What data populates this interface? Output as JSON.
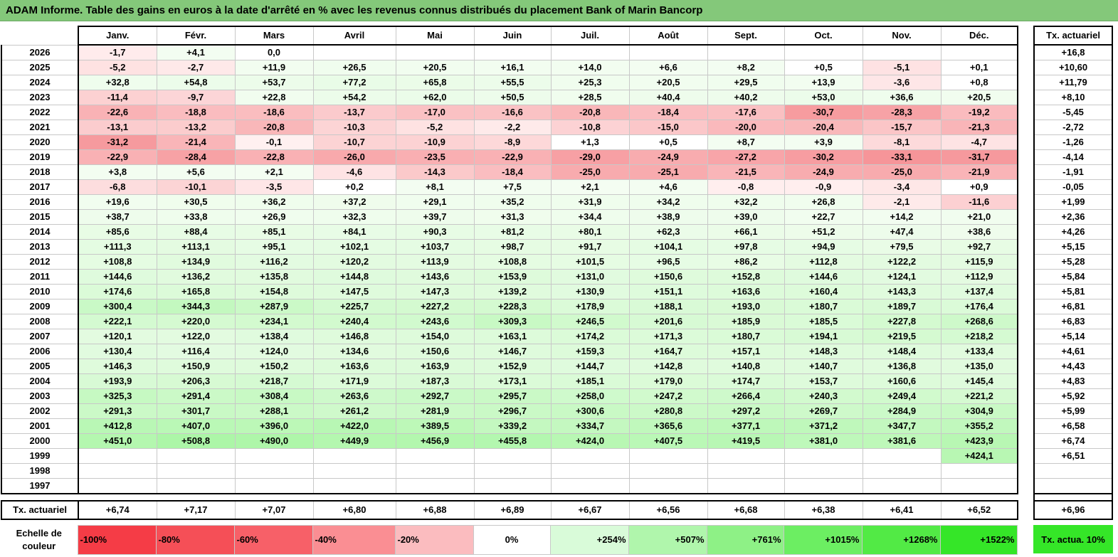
{
  "title": "ADAM Informe. Table des gains en euros à la date d'arrêté en % avec les revenus connus distribués du placement Bank of Marin Bancorp",
  "months": [
    "Janv.",
    "Févr.",
    "Mars",
    "Avril",
    "Mai",
    "Juin",
    "Juil.",
    "Août",
    "Sept.",
    "Oct.",
    "Nov.",
    "Déc."
  ],
  "side_header": "Tx. actuariel",
  "rows": [
    {
      "year": "2026",
      "cells": [
        "-1,7",
        "+4,1",
        "0,0",
        "",
        "",
        "",
        "",
        "",
        "",
        "",
        "",
        ""
      ],
      "tx": "+16,8"
    },
    {
      "year": "2025",
      "cells": [
        "-5,2",
        "-2,7",
        "+11,9",
        "+26,5",
        "+20,5",
        "+16,1",
        "+14,0",
        "+6,6",
        "+8,2",
        "+0,5",
        "-5,1",
        "+0,1"
      ],
      "tx": "+10,60"
    },
    {
      "year": "2024",
      "cells": [
        "+32,8",
        "+54,8",
        "+53,7",
        "+77,2",
        "+65,8",
        "+55,5",
        "+25,3",
        "+20,5",
        "+29,5",
        "+13,9",
        "-3,6",
        "+0,8"
      ],
      "tx": "+11,79"
    },
    {
      "year": "2023",
      "cells": [
        "-11,4",
        "-9,7",
        "+22,8",
        "+54,2",
        "+62,0",
        "+50,5",
        "+28,5",
        "+40,4",
        "+40,2",
        "+53,0",
        "+36,6",
        "+20,5"
      ],
      "tx": "+8,10"
    },
    {
      "year": "2022",
      "cells": [
        "-22,6",
        "-18,8",
        "-18,6",
        "-13,7",
        "-17,0",
        "-16,6",
        "-20,8",
        "-18,4",
        "-17,6",
        "-30,7",
        "-28,3",
        "-19,2"
      ],
      "tx": "-5,45"
    },
    {
      "year": "2021",
      "cells": [
        "-13,1",
        "-13,2",
        "-20,8",
        "-10,3",
        "-5,2",
        "-2,2",
        "-10,8",
        "-15,0",
        "-20,0",
        "-20,4",
        "-15,7",
        "-21,3"
      ],
      "tx": "-2,72"
    },
    {
      "year": "2020",
      "cells": [
        "-31,2",
        "-21,4",
        "-0,1",
        "-10,7",
        "-10,9",
        "-8,9",
        "+1,3",
        "+0,5",
        "+8,7",
        "+3,9",
        "-8,1",
        "-4,7"
      ],
      "tx": "-1,26"
    },
    {
      "year": "2019",
      "cells": [
        "-22,9",
        "-28,4",
        "-22,8",
        "-26,0",
        "-23,5",
        "-22,9",
        "-29,0",
        "-24,9",
        "-27,2",
        "-30,2",
        "-33,1",
        "-31,7"
      ],
      "tx": "-4,14"
    },
    {
      "year": "2018",
      "cells": [
        "+3,8",
        "+5,6",
        "+2,1",
        "-4,6",
        "-14,3",
        "-18,4",
        "-25,0",
        "-25,1",
        "-21,5",
        "-24,9",
        "-25,0",
        "-21,9"
      ],
      "tx": "-1,91"
    },
    {
      "year": "2017",
      "cells": [
        "-6,8",
        "-10,1",
        "-3,5",
        "+0,2",
        "+8,1",
        "+7,5",
        "+2,1",
        "+4,6",
        "-0,8",
        "-0,9",
        "-3,4",
        "+0,9"
      ],
      "tx": "-0,05"
    },
    {
      "year": "2016",
      "cells": [
        "+19,6",
        "+30,5",
        "+36,2",
        "+37,2",
        "+29,1",
        "+35,2",
        "+31,9",
        "+34,2",
        "+32,2",
        "+26,8",
        "-2,1",
        "-11,6"
      ],
      "tx": "+1,99"
    },
    {
      "year": "2015",
      "cells": [
        "+38,7",
        "+33,8",
        "+26,9",
        "+32,3",
        "+39,7",
        "+31,3",
        "+34,4",
        "+38,9",
        "+39,0",
        "+22,7",
        "+14,2",
        "+21,0"
      ],
      "tx": "+2,36"
    },
    {
      "year": "2014",
      "cells": [
        "+85,6",
        "+88,4",
        "+85,1",
        "+84,1",
        "+90,3",
        "+81,2",
        "+80,1",
        "+62,3",
        "+66,1",
        "+51,2",
        "+47,4",
        "+38,6"
      ],
      "tx": "+4,26"
    },
    {
      "year": "2013",
      "cells": [
        "+111,3",
        "+113,1",
        "+95,1",
        "+102,1",
        "+103,7",
        "+98,7",
        "+91,7",
        "+104,1",
        "+97,8",
        "+94,9",
        "+79,5",
        "+92,7"
      ],
      "tx": "+5,15"
    },
    {
      "year": "2012",
      "cells": [
        "+108,8",
        "+134,9",
        "+116,2",
        "+120,2",
        "+113,9",
        "+108,8",
        "+101,5",
        "+96,5",
        "+86,2",
        "+112,8",
        "+122,2",
        "+115,9"
      ],
      "tx": "+5,28"
    },
    {
      "year": "2011",
      "cells": [
        "+144,6",
        "+136,2",
        "+135,8",
        "+144,8",
        "+143,6",
        "+153,9",
        "+131,0",
        "+150,6",
        "+152,8",
        "+144,6",
        "+124,1",
        "+112,9"
      ],
      "tx": "+5,84"
    },
    {
      "year": "2010",
      "cells": [
        "+174,6",
        "+165,8",
        "+154,8",
        "+147,5",
        "+147,3",
        "+139,2",
        "+130,9",
        "+151,1",
        "+163,6",
        "+160,4",
        "+143,3",
        "+137,4"
      ],
      "tx": "+5,81"
    },
    {
      "year": "2009",
      "cells": [
        "+300,4",
        "+344,3",
        "+287,9",
        "+225,7",
        "+227,2",
        "+228,3",
        "+178,9",
        "+188,1",
        "+193,0",
        "+180,7",
        "+189,7",
        "+176,4"
      ],
      "tx": "+6,81"
    },
    {
      "year": "2008",
      "cells": [
        "+222,1",
        "+220,0",
        "+234,1",
        "+240,4",
        "+243,6",
        "+309,3",
        "+246,5",
        "+201,6",
        "+185,9",
        "+185,5",
        "+227,8",
        "+268,6"
      ],
      "tx": "+6,83"
    },
    {
      "year": "2007",
      "cells": [
        "+120,1",
        "+122,0",
        "+138,4",
        "+146,8",
        "+154,0",
        "+163,1",
        "+174,2",
        "+171,3",
        "+180,7",
        "+194,1",
        "+219,5",
        "+218,2"
      ],
      "tx": "+5,14"
    },
    {
      "year": "2006",
      "cells": [
        "+130,4",
        "+116,4",
        "+124,0",
        "+134,6",
        "+150,6",
        "+146,7",
        "+159,3",
        "+164,7",
        "+157,1",
        "+148,3",
        "+148,4",
        "+133,4"
      ],
      "tx": "+4,61"
    },
    {
      "year": "2005",
      "cells": [
        "+146,3",
        "+150,9",
        "+150,2",
        "+163,6",
        "+163,9",
        "+152,9",
        "+144,7",
        "+142,8",
        "+140,8",
        "+140,7",
        "+136,8",
        "+135,0"
      ],
      "tx": "+4,43"
    },
    {
      "year": "2004",
      "cells": [
        "+193,9",
        "+206,3",
        "+218,7",
        "+171,9",
        "+187,3",
        "+173,1",
        "+185,1",
        "+179,0",
        "+174,7",
        "+153,7",
        "+160,6",
        "+145,4"
      ],
      "tx": "+4,83"
    },
    {
      "year": "2003",
      "cells": [
        "+325,3",
        "+291,4",
        "+308,4",
        "+263,6",
        "+292,7",
        "+295,7",
        "+258,0",
        "+247,2",
        "+266,4",
        "+240,3",
        "+249,4",
        "+221,2"
      ],
      "tx": "+5,92"
    },
    {
      "year": "2002",
      "cells": [
        "+291,3",
        "+301,7",
        "+288,1",
        "+261,2",
        "+281,9",
        "+296,7",
        "+300,6",
        "+280,8",
        "+297,2",
        "+269,7",
        "+284,9",
        "+304,9"
      ],
      "tx": "+5,99"
    },
    {
      "year": "2001",
      "cells": [
        "+412,8",
        "+407,0",
        "+396,0",
        "+422,0",
        "+389,5",
        "+339,2",
        "+334,7",
        "+365,6",
        "+377,1",
        "+371,2",
        "+347,7",
        "+355,2"
      ],
      "tx": "+6,58"
    },
    {
      "year": "2000",
      "cells": [
        "+451,0",
        "+508,8",
        "+490,0",
        "+449,9",
        "+456,9",
        "+455,8",
        "+424,0",
        "+407,5",
        "+419,5",
        "+381,0",
        "+381,6",
        "+423,9"
      ],
      "tx": "+6,74"
    },
    {
      "year": "1999",
      "cells": [
        "",
        "",
        "",
        "",
        "",
        "",
        "",
        "",
        "",
        "",
        "",
        "+424,1"
      ],
      "tx": "+6,51"
    },
    {
      "year": "1998",
      "cells": [
        "",
        "",
        "",
        "",
        "",
        "",
        "",
        "",
        "",
        "",
        "",
        ""
      ],
      "tx": ""
    },
    {
      "year": "1997",
      "cells": [
        "",
        "",
        "",
        "",
        "",
        "",
        "",
        "",
        "",
        "",
        "",
        ""
      ],
      "tx": ""
    }
  ],
  "summary": {
    "label": "Tx. actuariel",
    "cells": [
      "+6,74",
      "+7,17",
      "+7,07",
      "+6,80",
      "+6,88",
      "+6,89",
      "+6,67",
      "+6,56",
      "+6,68",
      "+6,38",
      "+6,41",
      "+6,52"
    ],
    "tx": "+6,96"
  },
  "legend": {
    "label": "Echelle de couleur",
    "items": [
      {
        "text": "-100%",
        "color": "#f53c46"
      },
      {
        "text": "-80%",
        "color": "#f54f57"
      },
      {
        "text": "-60%",
        "color": "#f76068"
      },
      {
        "text": "-40%",
        "color": "#fa8e93"
      },
      {
        "text": "-20%",
        "color": "#fbbcbf"
      },
      {
        "text": "0%",
        "color": "#ffffff"
      },
      {
        "text": "+254%",
        "color": "#d9fbd9"
      },
      {
        "text": "+507%",
        "color": "#b0f6ac"
      },
      {
        "text": "+761%",
        "color": "#8ef186"
      },
      {
        "text": "+1015%",
        "color": "#6cee62"
      },
      {
        "text": "+1268%",
        "color": "#52ea45"
      },
      {
        "text": "+1522%",
        "color": "#35e628"
      }
    ],
    "side_text": "Tx. actua. 10%",
    "side_color": "#35e628"
  }
}
